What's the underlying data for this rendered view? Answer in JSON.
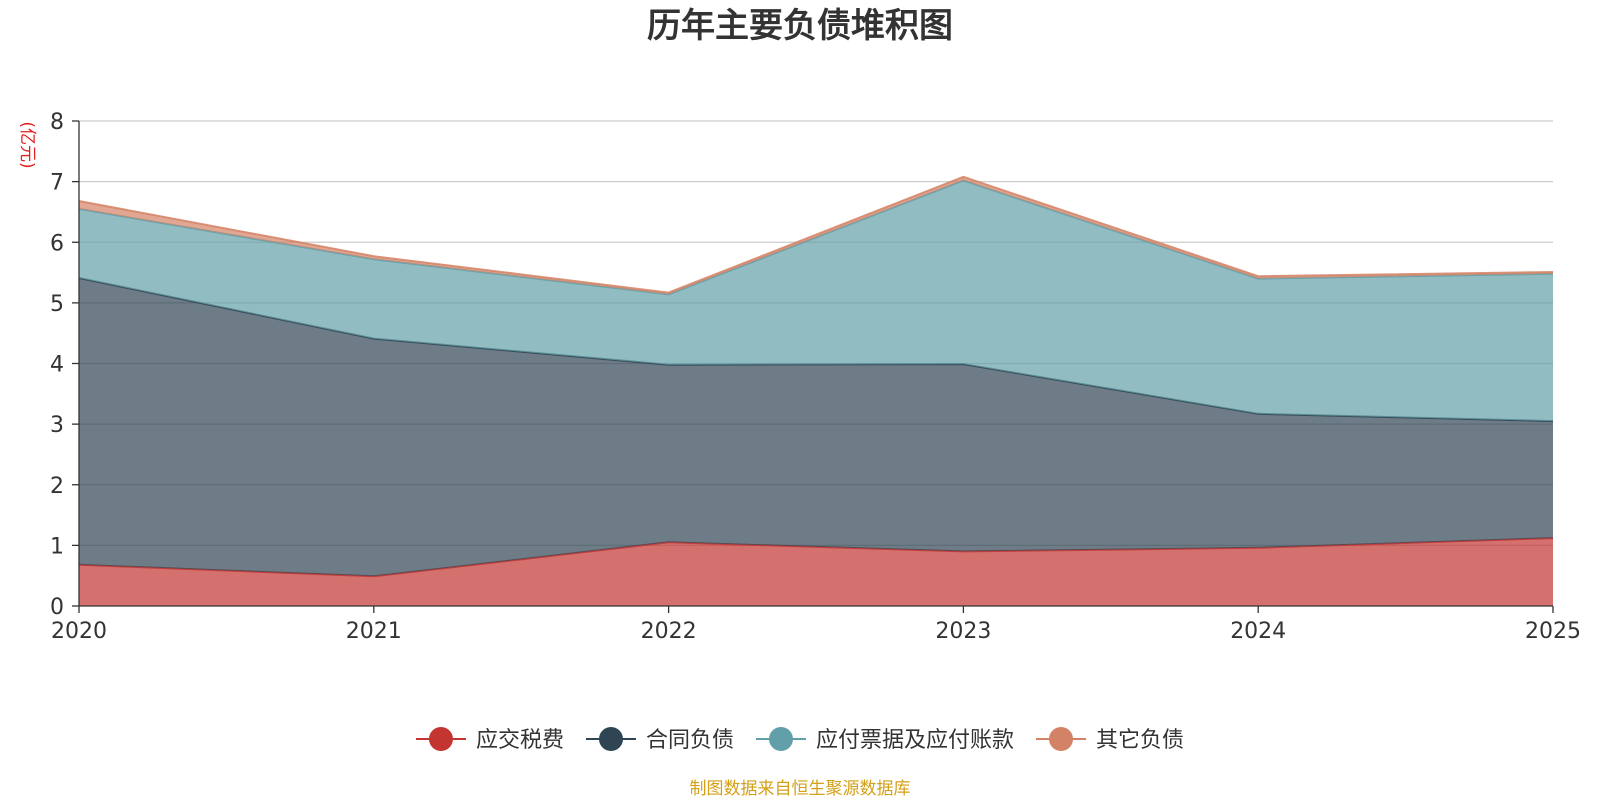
{
  "chart_data": {
    "type": "area",
    "stacked": true,
    "title": "历年主要负债堆积图",
    "ylabel": "(亿元)",
    "xlabel": "",
    "x": [
      "2020",
      "2021",
      "2022",
      "2023",
      "2024",
      "2025"
    ],
    "ylim": [
      0,
      8
    ],
    "yticks": [
      0,
      1,
      2,
      3,
      4,
      5,
      6,
      7,
      8
    ],
    "grid": true,
    "legend_position": "bottom",
    "series": [
      {
        "name": "应交税费",
        "color": "#c23531",
        "values": [
          0.68,
          0.49,
          1.05,
          0.9,
          0.96,
          1.12
        ]
      },
      {
        "name": "合同负债",
        "color": "#2f4554",
        "values": [
          4.73,
          3.92,
          2.93,
          3.09,
          2.21,
          1.93
        ]
      },
      {
        "name": "应付票据及应付账款",
        "color": "#61a0a8",
        "values": [
          1.14,
          1.31,
          1.16,
          3.03,
          2.23,
          2.43
        ]
      },
      {
        "name": "其它负债",
        "color": "#d48265",
        "values": [
          0.13,
          0.05,
          0.03,
          0.06,
          0.04,
          0.03
        ]
      }
    ],
    "source": "制图数据来自恒生聚源数据库"
  },
  "colors": {
    "grid": "#cccccc",
    "axis": "#333333",
    "unit": "#e0201f",
    "source": "#d4a017"
  }
}
